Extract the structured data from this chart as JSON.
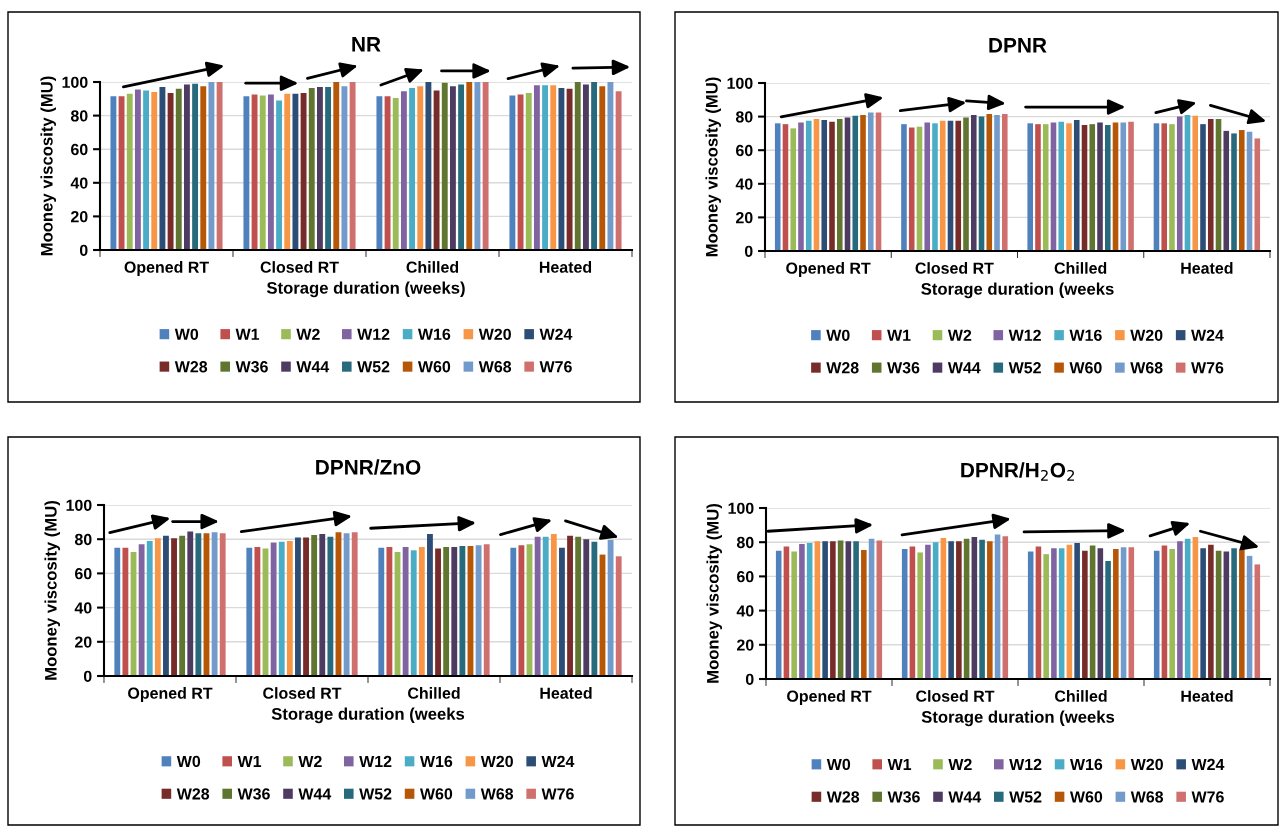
{
  "chart_data": [
    {
      "type": "bar",
      "title": "NR",
      "xlabel": "Storage duration (weeks)",
      "ylabel": "Mooney viscosity (MU)",
      "categories": [
        "Opened RT",
        "Closed RT",
        "Chilled",
        "Heated"
      ],
      "ylim": [
        0,
        100
      ],
      "yticks": [
        0,
        20,
        40,
        60,
        80,
        100
      ],
      "grid": "y",
      "legend": "bottom",
      "series": [
        {
          "name": "W0",
          "color": "#4f81bd",
          "values": [
            91.5,
            91.5,
            91.5,
            92
          ]
        },
        {
          "name": "W1",
          "color": "#c0504d",
          "values": [
            91.5,
            92.5,
            91.5,
            92.5
          ]
        },
        {
          "name": "W2",
          "color": "#9bbb59",
          "values": [
            93,
            92,
            90.5,
            93.5
          ]
        },
        {
          "name": "W12",
          "color": "#8064a2",
          "values": [
            95.5,
            92.5,
            94.5,
            98
          ]
        },
        {
          "name": "W16",
          "color": "#4bacc6",
          "values": [
            95,
            89,
            96.5,
            98
          ]
        },
        {
          "name": "W20",
          "color": "#f79646",
          "values": [
            94,
            93,
            97.5,
            98
          ]
        },
        {
          "name": "W24",
          "color": "#2c4d75",
          "values": [
            97,
            93,
            100,
            96.5
          ]
        },
        {
          "name": "W28",
          "color": "#772c2a",
          "values": [
            93.5,
            93.5,
            95,
            96
          ]
        },
        {
          "name": "W36",
          "color": "#5f7530",
          "values": [
            96,
            96.5,
            99.5,
            100
          ]
        },
        {
          "name": "W44",
          "color": "#4d3b62",
          "values": [
            98.5,
            97,
            97.5,
            98.5
          ]
        },
        {
          "name": "W52",
          "color": "#276a7c",
          "values": [
            99,
            97,
            98.5,
            100
          ]
        },
        {
          "name": "W60",
          "color": "#b65708",
          "values": [
            97.5,
            100,
            100,
            97.5
          ]
        },
        {
          "name": "W68",
          "color": "#729aca",
          "values": [
            100,
            97.5,
            100,
            100
          ]
        },
        {
          "name": "W76",
          "color": "#d0706e",
          "values": [
            100,
            100,
            100,
            94.5
          ]
        }
      ]
    },
    {
      "type": "bar",
      "title": "DPNR",
      "xlabel": "Storage duration (weeks",
      "ylabel": "Mooney viscosity (MU)",
      "categories": [
        "Opened RT",
        "Closed RT",
        "Chilled",
        "Heated"
      ],
      "ylim": [
        0,
        100
      ],
      "yticks": [
        0,
        20,
        40,
        60,
        80,
        100
      ],
      "grid": "y",
      "legend": "bottom",
      "series": [
        {
          "name": "W0",
          "color": "#4f81bd",
          "values": [
            76,
            75.5,
            76,
            76
          ]
        },
        {
          "name": "W1",
          "color": "#c0504d",
          "values": [
            75.5,
            73.5,
            75.5,
            76
          ]
        },
        {
          "name": "W2",
          "color": "#9bbb59",
          "values": [
            73,
            74,
            75.5,
            75.5
          ]
        },
        {
          "name": "W12",
          "color": "#8064a2",
          "values": [
            76.5,
            76.5,
            76.5,
            80
          ]
        },
        {
          "name": "W16",
          "color": "#4bacc6",
          "values": [
            77.5,
            76,
            77,
            81
          ]
        },
        {
          "name": "W20",
          "color": "#f79646",
          "values": [
            78.5,
            77.5,
            76,
            80.5
          ]
        },
        {
          "name": "W24",
          "color": "#2c4d75",
          "values": [
            78,
            77.5,
            78,
            75.5
          ]
        },
        {
          "name": "W28",
          "color": "#772c2a",
          "values": [
            77,
            77.5,
            75,
            78.5
          ]
        },
        {
          "name": "W36",
          "color": "#5f7530",
          "values": [
            78.5,
            79.5,
            75.5,
            78.5
          ]
        },
        {
          "name": "W44",
          "color": "#4d3b62",
          "values": [
            79.5,
            81,
            76.5,
            71.5
          ]
        },
        {
          "name": "W52",
          "color": "#276a7c",
          "values": [
            80.5,
            80,
            75,
            70
          ]
        },
        {
          "name": "W60",
          "color": "#b65708",
          "values": [
            81,
            81.5,
            76.5,
            72
          ]
        },
        {
          "name": "W68",
          "color": "#729aca",
          "values": [
            82.5,
            81,
            76.5,
            71
          ]
        },
        {
          "name": "W76",
          "color": "#d0706e",
          "values": [
            82.5,
            81.5,
            77,
            67
          ]
        }
      ]
    },
    {
      "type": "bar",
      "title": "DPNR/ZnO",
      "xlabel": "Storage duration (weeks",
      "ylabel": "Mooney viscosity (MU)",
      "categories": [
        "Opened RT",
        "Closed RT",
        "Chilled",
        "Heated"
      ],
      "ylim": [
        0,
        100
      ],
      "yticks": [
        0,
        20,
        40,
        60,
        80,
        100
      ],
      "grid": "y",
      "legend": "bottom",
      "series": [
        {
          "name": "W0",
          "color": "#4f81bd",
          "values": [
            75,
            75,
            75,
            75
          ]
        },
        {
          "name": "W1",
          "color": "#c0504d",
          "values": [
            75,
            75.5,
            75.5,
            76.5
          ]
        },
        {
          "name": "W2",
          "color": "#9bbb59",
          "values": [
            72.5,
            74.5,
            72.5,
            77
          ]
        },
        {
          "name": "W12",
          "color": "#8064a2",
          "values": [
            77,
            78,
            75.5,
            81.5
          ]
        },
        {
          "name": "W16",
          "color": "#4bacc6",
          "values": [
            79,
            78.5,
            73.5,
            81.5
          ]
        },
        {
          "name": "W20",
          "color": "#f79646",
          "values": [
            80.5,
            79,
            75.5,
            83
          ]
        },
        {
          "name": "W24",
          "color": "#2c4d75",
          "values": [
            82,
            81,
            83,
            75
          ]
        },
        {
          "name": "W28",
          "color": "#772c2a",
          "values": [
            80.5,
            81,
            74.5,
            82
          ]
        },
        {
          "name": "W36",
          "color": "#5f7530",
          "values": [
            82,
            82.5,
            75.5,
            81.5
          ]
        },
        {
          "name": "W44",
          "color": "#4d3b62",
          "values": [
            84.5,
            83,
            75.5,
            80
          ]
        },
        {
          "name": "W52",
          "color": "#276a7c",
          "values": [
            83.5,
            81.5,
            76,
            78.5
          ]
        },
        {
          "name": "W60",
          "color": "#b65708",
          "values": [
            83.5,
            84,
            76,
            71
          ]
        },
        {
          "name": "W68",
          "color": "#729aca",
          "values": [
            84,
            83.5,
            76.5,
            79.5
          ]
        },
        {
          "name": "W76",
          "color": "#d0706e",
          "values": [
            83.5,
            84,
            77,
            70
          ]
        }
      ]
    },
    {
      "type": "bar",
      "title": "DPNR/H$_{2}$O$_{2}$",
      "xlabel": "Storage duration (weeks",
      "ylabel": "Mooney viscosity (MU)",
      "categories": [
        "Opened RT",
        "Closed RT",
        "Chilled",
        "Heated"
      ],
      "ylim": [
        0,
        100
      ],
      "yticks": [
        0,
        20,
        40,
        60,
        80,
        100
      ],
      "grid": "y",
      "legend": "bottom",
      "series": [
        {
          "name": "W0",
          "color": "#4f81bd",
          "values": [
            75,
            76,
            74.5,
            75
          ]
        },
        {
          "name": "W1",
          "color": "#c0504d",
          "values": [
            77.5,
            77.5,
            77.5,
            78
          ]
        },
        {
          "name": "W2",
          "color": "#9bbb59",
          "values": [
            74.5,
            74,
            73,
            76
          ]
        },
        {
          "name": "W12",
          "color": "#8064a2",
          "values": [
            79,
            78.5,
            76.5,
            80.5
          ]
        },
        {
          "name": "W16",
          "color": "#4bacc6",
          "values": [
            79.5,
            80,
            76.5,
            82
          ]
        },
        {
          "name": "W20",
          "color": "#f79646",
          "values": [
            80.5,
            82.5,
            78.5,
            83
          ]
        },
        {
          "name": "W24",
          "color": "#2c4d75",
          "values": [
            80.5,
            80.5,
            79.5,
            76.5
          ]
        },
        {
          "name": "W28",
          "color": "#772c2a",
          "values": [
            80.5,
            80.5,
            75,
            78.5
          ]
        },
        {
          "name": "W36",
          "color": "#5f7530",
          "values": [
            81,
            82,
            78,
            75
          ]
        },
        {
          "name": "W44",
          "color": "#4d3b62",
          "values": [
            80.5,
            83,
            76.5,
            74.5
          ]
        },
        {
          "name": "W52",
          "color": "#276a7c",
          "values": [
            80.5,
            81.5,
            69,
            76.5
          ]
        },
        {
          "name": "W60",
          "color": "#b65708",
          "values": [
            75.5,
            80.5,
            76,
            76
          ]
        },
        {
          "name": "W68",
          "color": "#729aca",
          "values": [
            82,
            84.5,
            77,
            72
          ]
        },
        {
          "name": "W76",
          "color": "#d0706e",
          "values": [
            81,
            83.5,
            77,
            67
          ]
        }
      ]
    }
  ]
}
